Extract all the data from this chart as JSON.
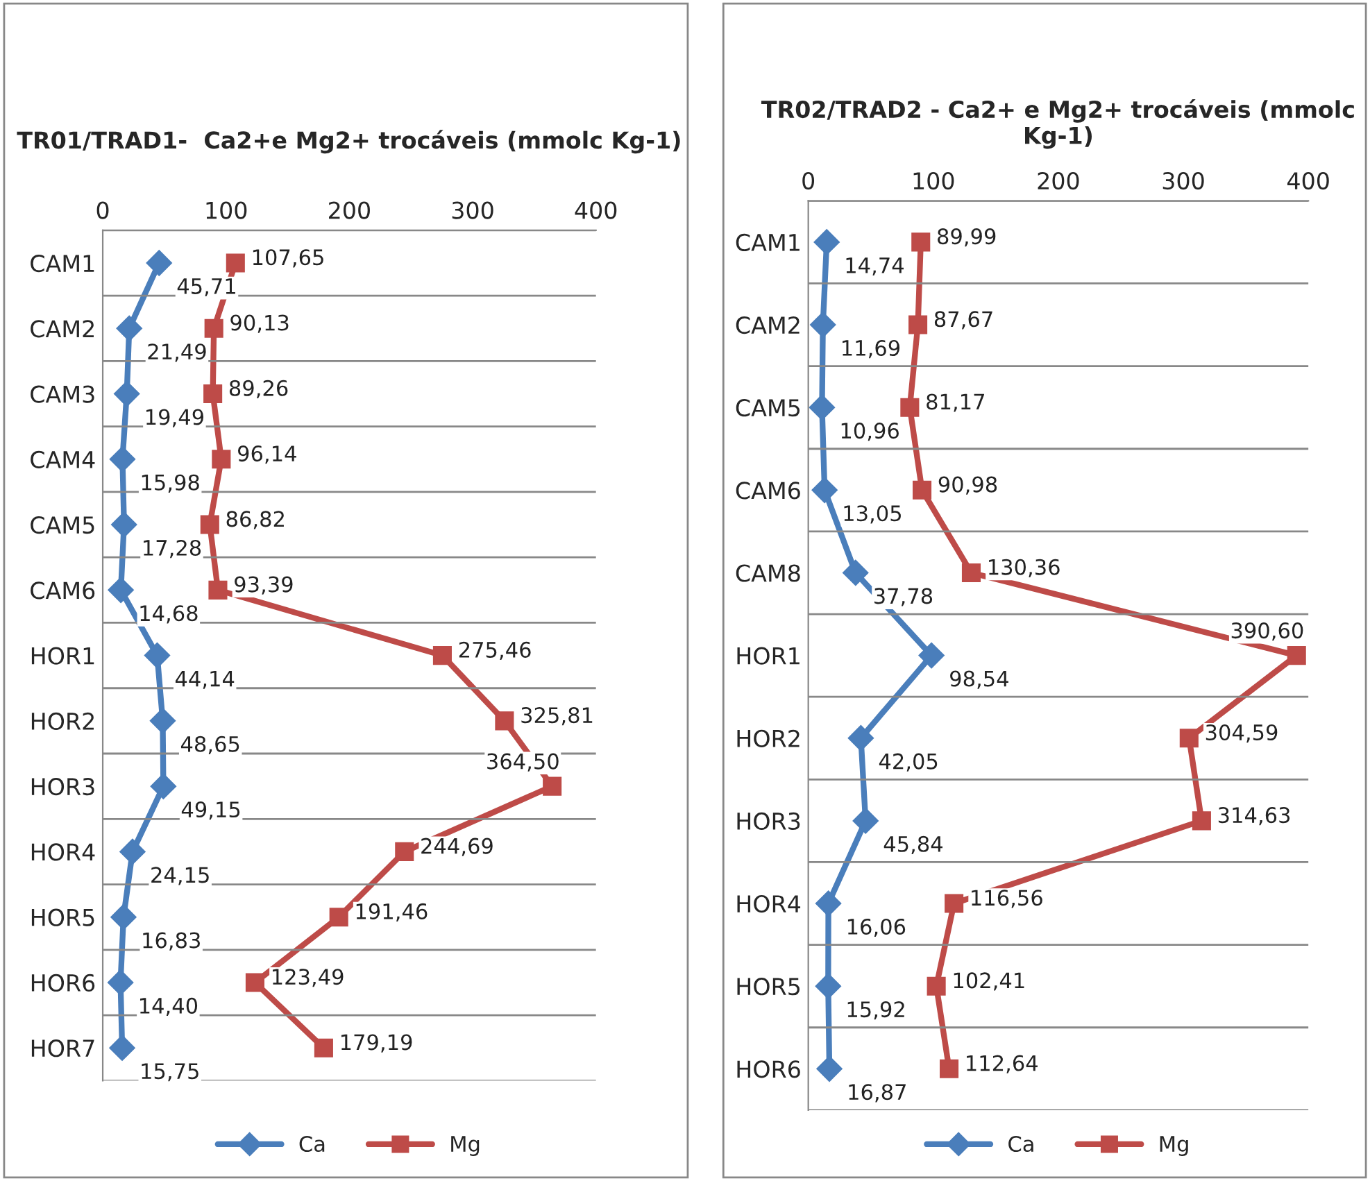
{
  "chart_data": [
    {
      "type": "line",
      "orientation": "horizontal",
      "title": "TR01/TRAD1-  Ca2+e Mg2+ trocáveis (mmolc Kg-1)",
      "categories": [
        "CAM1",
        "CAM2",
        "CAM3",
        "CAM4",
        "CAM5",
        "CAM6",
        "HOR1",
        "HOR2",
        "HOR3",
        "HOR4",
        "HOR5",
        "HOR6",
        "HOR7"
      ],
      "xlim": [
        0,
        400
      ],
      "xticks": [
        0,
        100,
        200,
        300,
        400
      ],
      "grid": "y",
      "legend": "bottom",
      "series": [
        {
          "name": "Ca",
          "color": "#4a7ebb",
          "marker": "diamond",
          "values": [
            45.71,
            21.49,
            19.49,
            15.98,
            17.28,
            14.68,
            44.14,
            48.65,
            49.15,
            24.15,
            16.83,
            14.4,
            15.75
          ],
          "value_labels": [
            "45,71",
            "21,49",
            "19,49",
            "15,98",
            "17,28",
            "14,68",
            "44,14",
            "48,65",
            "49,15",
            "24,15",
            "16,83",
            "14,40",
            "15,75"
          ]
        },
        {
          "name": "Mg",
          "color": "#be4b48",
          "marker": "square",
          "values": [
            107.65,
            90.13,
            89.26,
            96.14,
            86.82,
            93.39,
            275.46,
            325.81,
            364.5,
            244.69,
            191.46,
            123.49,
            179.19
          ],
          "value_labels": [
            "107,65",
            "90,13",
            "89,26",
            "96,14",
            "86,82",
            "93,39",
            "275,46",
            "325,81",
            "364,50",
            "244,69",
            "191,46",
            "123,49",
            "179,19"
          ]
        }
      ]
    },
    {
      "type": "line",
      "orientation": "horizontal",
      "title": "TR02/TRAD2 - Ca2+ e Mg2+ trocáveis (mmolc Kg-1)",
      "categories": [
        "CAM1",
        "CAM2",
        "CAM5",
        "CAM6",
        "CAM8",
        "HOR1",
        "HOR2",
        "HOR3",
        "HOR4",
        "HOR5",
        "HOR6"
      ],
      "xlim": [
        0,
        400
      ],
      "xticks": [
        0,
        100,
        200,
        300,
        400
      ],
      "grid": "y",
      "legend": "bottom",
      "series": [
        {
          "name": "Ca",
          "color": "#4a7ebb",
          "marker": "diamond",
          "values": [
            14.74,
            11.69,
            10.96,
            13.05,
            37.78,
            98.54,
            42.05,
            45.84,
            16.06,
            15.92,
            16.87
          ],
          "value_labels": [
            "14,74",
            "11,69",
            "10,96",
            "13,05",
            "37,78",
            "98,54",
            "42,05",
            "45,84",
            "16,06",
            "15,92",
            "16,87"
          ]
        },
        {
          "name": "Mg",
          "color": "#be4b48",
          "marker": "square",
          "values": [
            89.99,
            87.67,
            81.17,
            90.98,
            130.36,
            390.6,
            304.59,
            314.63,
            116.56,
            102.41,
            112.64
          ],
          "value_labels": [
            "89,99",
            "87,67",
            "81,17",
            "90,98",
            "130,36",
            "390,60",
            "304,59",
            "314,63",
            "116,56",
            "102,41",
            "112,64"
          ]
        }
      ]
    }
  ]
}
